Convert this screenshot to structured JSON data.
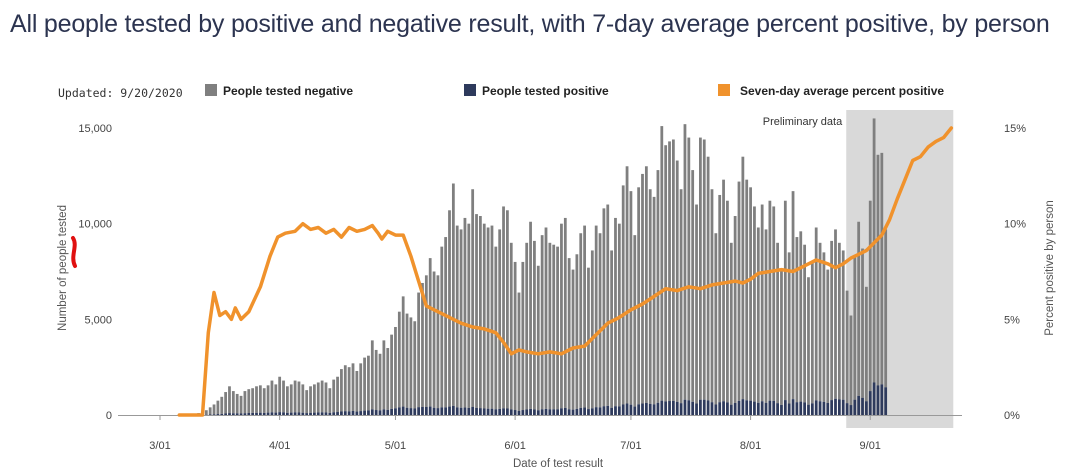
{
  "title": "All people tested by positive and negative result, with 7-day average percent positive, by person",
  "updated": "Updated: 9/20/2020",
  "colors": {
    "negative": "#7f7f7f",
    "positive": "#2e3a5c",
    "line": "#f0922c",
    "shade": "#d9d9d9",
    "annotation_mark": "#e01010"
  },
  "chart_data": {
    "type": "bar",
    "stacked": true,
    "xlabel": "Date of test result",
    "ylabel": "Number of people tested",
    "y2label": "Percent positive by person",
    "ylim": [
      0,
      15000
    ],
    "y2lim": [
      0,
      15
    ],
    "yticks": [
      {
        "value": 0,
        "label": "0"
      },
      {
        "value": 5000,
        "label": "5,000"
      },
      {
        "value": 10000,
        "label": "10,000"
      },
      {
        "value": 15000,
        "label": "15,000"
      }
    ],
    "y2ticks": [
      {
        "value": 0,
        "label": "0%"
      },
      {
        "value": 5,
        "label": "5%"
      },
      {
        "value": 10,
        "label": "10%"
      },
      {
        "value": 15,
        "label": "15%"
      }
    ],
    "xticks": [
      {
        "day": 0,
        "label": "3/01"
      },
      {
        "day": 31,
        "label": "4/01"
      },
      {
        "day": 61,
        "label": "5/01"
      },
      {
        "day": 92,
        "label": "6/01"
      },
      {
        "day": 122,
        "label": "7/01"
      },
      {
        "day": 153,
        "label": "8/01"
      },
      {
        "day": 184,
        "label": "9/01"
      }
    ],
    "legend": [
      "People tested negative",
      "People tested positive",
      "Seven-day average percent positive"
    ],
    "legend_position": "top",
    "annotation": {
      "label": "Preliminary data",
      "start_day": 177,
      "end_day": 205
    },
    "bar_start_day": 10,
    "total_tested": [
      100,
      150,
      250,
      400,
      550,
      750,
      950,
      1200,
      1500,
      1250,
      1100,
      1000,
      1250,
      1350,
      1400,
      1500,
      1550,
      1400,
      1550,
      1800,
      1600,
      2000,
      1800,
      1500,
      1600,
      1800,
      1750,
      1600,
      1300,
      1500,
      1600,
      1700,
      1800,
      1700,
      1400,
      1850,
      2000,
      2400,
      2600,
      2500,
      2700,
      2300,
      2700,
      3000,
      3100,
      3900,
      3400,
      3200,
      3900,
      3500,
      4200,
      4600,
      5400,
      6200,
      5300,
      5100,
      4900,
      6400,
      6900,
      7300,
      8200,
      7500,
      7300,
      8800,
      9300,
      10700,
      12100,
      9900,
      9700,
      10300,
      10000,
      11800,
      10500,
      10400,
      10000,
      9800,
      9900,
      8800,
      9700,
      10900,
      10700,
      9000,
      8000,
      6400,
      8000,
      9000,
      10100,
      9100,
      7800,
      9400,
      9800,
      9000,
      8900,
      8800,
      10000,
      10300,
      8200,
      7600,
      8400,
      9500,
      9900,
      7700,
      8600,
      9900,
      9500,
      10800,
      11000,
      8600,
      10300,
      10000,
      12000,
      13000,
      11700,
      9400,
      11900,
      12600,
      13000,
      11800,
      11400,
      12800,
      15100,
      14100,
      14300,
      14400,
      13300,
      11800,
      15200,
      14500,
      12800,
      11000,
      14500,
      14400,
      13500,
      11800,
      9500,
      11500,
      12300,
      11200,
      9000,
      10400,
      12200,
      13500,
      12300,
      11900,
      10900,
      9800,
      11000,
      9700,
      11200,
      10900,
      9000,
      7600,
      11200,
      8500,
      11700,
      9300,
      9600,
      8900,
      7200,
      8000,
      9800,
      9000,
      8500,
      7600,
      9100,
      9700,
      9000,
      8600,
      6500,
      5200,
      8300,
      10100,
      8700,
      6700,
      11200,
      15500,
      13600,
      13700,
      9700
    ],
    "positive_tested": [
      5,
      8,
      15,
      25,
      35,
      50,
      60,
      80,
      100,
      90,
      85,
      80,
      95,
      105,
      110,
      115,
      120,
      110,
      125,
      140,
      125,
      150,
      140,
      115,
      125,
      140,
      130,
      120,
      100,
      115,
      125,
      135,
      140,
      135,
      110,
      145,
      155,
      185,
      200,
      190,
      210,
      180,
      205,
      230,
      240,
      295,
      260,
      245,
      295,
      270,
      320,
      350,
      400,
      440,
      380,
      360,
      340,
      410,
      420,
      420,
      440,
      380,
      360,
      400,
      400,
      440,
      480,
      400,
      380,
      390,
      370,
      420,
      370,
      360,
      340,
      330,
      330,
      300,
      320,
      350,
      340,
      290,
      260,
      210,
      260,
      290,
      320,
      290,
      250,
      300,
      320,
      300,
      300,
      300,
      350,
      370,
      300,
      280,
      320,
      370,
      390,
      310,
      350,
      410,
      400,
      460,
      480,
      380,
      460,
      450,
      550,
      600,
      540,
      440,
      560,
      600,
      630,
      580,
      560,
      640,
      750,
      710,
      730,
      740,
      690,
      620,
      800,
      770,
      690,
      600,
      800,
      800,
      760,
      670,
      550,
      670,
      720,
      660,
      540,
      630,
      740,
      830,
      770,
      750,
      700,
      640,
      720,
      640,
      750,
      740,
      620,
      530,
      780,
      600,
      830,
      670,
      700,
      660,
      540,
      610,
      760,
      720,
      690,
      630,
      780,
      850,
      810,
      800,
      620,
      520,
      800,
      1000,
      900,
      720,
      1250,
      1700,
      1550,
      1600,
      1450
    ],
    "avg_percent_positive": [
      {
        "day": 5,
        "value": 0
      },
      {
        "day": 8,
        "value": 0
      },
      {
        "day": 11,
        "value": 0
      },
      {
        "day": 12.5,
        "value": 4.3
      },
      {
        "day": 14,
        "value": 6.4
      },
      {
        "day": 15.5,
        "value": 5.2
      },
      {
        "day": 17,
        "value": 5.4
      },
      {
        "day": 18.5,
        "value": 5.0
      },
      {
        "day": 19.5,
        "value": 5.6
      },
      {
        "day": 21,
        "value": 5.0
      },
      {
        "day": 23,
        "value": 5.4
      },
      {
        "day": 26,
        "value": 6.7
      },
      {
        "day": 28.5,
        "value": 8.3
      },
      {
        "day": 30.5,
        "value": 9.3
      },
      {
        "day": 32.5,
        "value": 9.5
      },
      {
        "day": 35,
        "value": 9.6
      },
      {
        "day": 37,
        "value": 10.0
      },
      {
        "day": 39,
        "value": 9.7
      },
      {
        "day": 41,
        "value": 9.8
      },
      {
        "day": 43,
        "value": 9.5
      },
      {
        "day": 45,
        "value": 9.7
      },
      {
        "day": 47,
        "value": 9.3
      },
      {
        "day": 49,
        "value": 9.8
      },
      {
        "day": 51,
        "value": 9.6
      },
      {
        "day": 53,
        "value": 9.7
      },
      {
        "day": 55,
        "value": 9.9
      },
      {
        "day": 56.5,
        "value": 9.5
      },
      {
        "day": 57.5,
        "value": 9.2
      },
      {
        "day": 59,
        "value": 9.6
      },
      {
        "day": 61,
        "value": 9.4
      },
      {
        "day": 63,
        "value": 9.4
      },
      {
        "day": 65,
        "value": 8.3
      },
      {
        "day": 67,
        "value": 7.0
      },
      {
        "day": 69,
        "value": 5.7
      },
      {
        "day": 72,
        "value": 5.4
      },
      {
        "day": 75,
        "value": 5.1
      },
      {
        "day": 78,
        "value": 4.8
      },
      {
        "day": 81,
        "value": 4.6
      },
      {
        "day": 84,
        "value": 4.5
      },
      {
        "day": 87,
        "value": 4.3
      },
      {
        "day": 89,
        "value": 3.8
      },
      {
        "day": 91,
        "value": 3.2
      },
      {
        "day": 93,
        "value": 3.4
      },
      {
        "day": 95,
        "value": 3.3
      },
      {
        "day": 98,
        "value": 3.2
      },
      {
        "day": 101,
        "value": 3.3
      },
      {
        "day": 104,
        "value": 3.2
      },
      {
        "day": 107,
        "value": 3.5
      },
      {
        "day": 110,
        "value": 3.6
      },
      {
        "day": 113,
        "value": 4.2
      },
      {
        "day": 116,
        "value": 4.8
      },
      {
        "day": 119,
        "value": 5.1
      },
      {
        "day": 122,
        "value": 5.5
      },
      {
        "day": 125,
        "value": 5.8
      },
      {
        "day": 128,
        "value": 6.2
      },
      {
        "day": 131,
        "value": 6.6
      },
      {
        "day": 134,
        "value": 6.5
      },
      {
        "day": 137,
        "value": 6.7
      },
      {
        "day": 140,
        "value": 6.6
      },
      {
        "day": 143,
        "value": 6.8
      },
      {
        "day": 146,
        "value": 6.9
      },
      {
        "day": 149,
        "value": 7.0
      },
      {
        "day": 151,
        "value": 6.9
      },
      {
        "day": 153,
        "value": 7.1
      },
      {
        "day": 155,
        "value": 7.4
      },
      {
        "day": 158,
        "value": 7.5
      },
      {
        "day": 161,
        "value": 7.6
      },
      {
        "day": 164,
        "value": 7.5
      },
      {
        "day": 167,
        "value": 7.8
      },
      {
        "day": 170,
        "value": 8.1
      },
      {
        "day": 173,
        "value": 7.9
      },
      {
        "day": 175,
        "value": 7.7
      },
      {
        "day": 177,
        "value": 7.9
      },
      {
        "day": 179,
        "value": 8.2
      },
      {
        "day": 181,
        "value": 8.4
      },
      {
        "day": 183,
        "value": 8.6
      },
      {
        "day": 185,
        "value": 9.0
      },
      {
        "day": 187,
        "value": 9.4
      },
      {
        "day": 189,
        "value": 10.2
      },
      {
        "day": 191,
        "value": 11.3
      },
      {
        "day": 193,
        "value": 12.3
      },
      {
        "day": 195,
        "value": 13.3
      },
      {
        "day": 197,
        "value": 13.5
      },
      {
        "day": 199,
        "value": 14.0
      },
      {
        "day": 201,
        "value": 14.3
      },
      {
        "day": 203,
        "value": 14.5
      },
      {
        "day": 205,
        "value": 15.0
      }
    ]
  }
}
